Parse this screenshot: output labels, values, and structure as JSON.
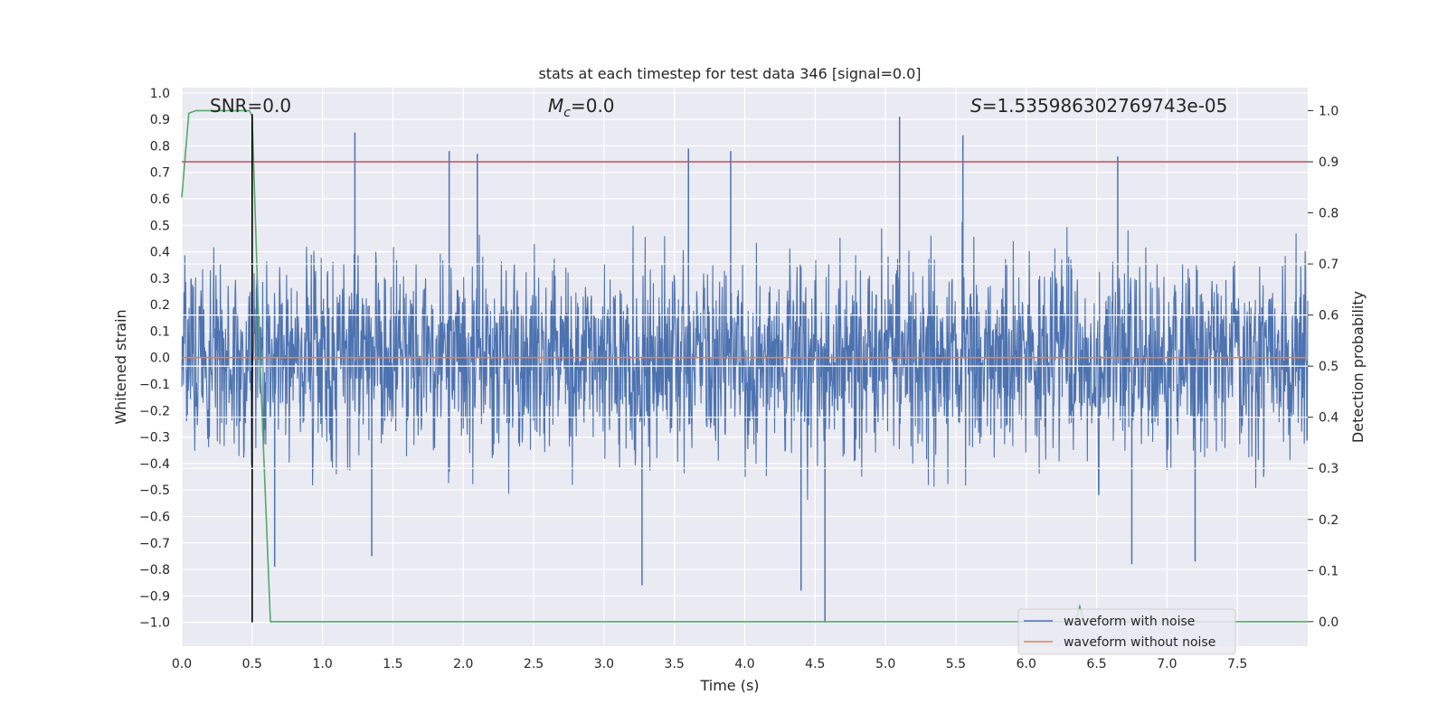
{
  "chart_data": {
    "type": "line",
    "title": "stats at each timestep for test data 346 [signal=0.0]",
    "xlabel": "Time (s)",
    "ylabel": "Whitened strain",
    "y2label": "Detection probability",
    "xlim": [
      0.0,
      8.0
    ],
    "ylim": [
      -1.09,
      1.02
    ],
    "y2lim": [
      -0.048,
      1.045
    ],
    "xticks": [
      "0.0",
      "0.5",
      "1.0",
      "1.5",
      "2.0",
      "2.5",
      "3.0",
      "3.5",
      "4.0",
      "4.5",
      "5.0",
      "5.5",
      "6.0",
      "6.5",
      "7.0",
      "7.5"
    ],
    "yticks": [
      "1.0",
      "0.9",
      "0.8",
      "0.7",
      "0.6",
      "0.5",
      "0.4",
      "0.3",
      "0.2",
      "0.1",
      "0.0",
      "−0.1",
      "−0.2",
      "−0.3",
      "−0.4",
      "−0.5",
      "−0.6",
      "−0.7",
      "−0.8",
      "−0.9",
      "−1.0"
    ],
    "y2ticks": [
      "1.0",
      "0.9",
      "0.8",
      "0.7",
      "0.6",
      "0.5",
      "0.4",
      "0.3",
      "0.2",
      "0.1",
      "0.0"
    ],
    "annotations": {
      "snr": "SNR=0.0",
      "mc_symbol": "M",
      "mc_sub": "c",
      "mc_value": "=0.0",
      "s_symbol": "S",
      "s_value": "=1.535986302769743e-05"
    },
    "series": [
      {
        "name": "waveform with noise",
        "color": "#4c72b0",
        "axis": "left",
        "description": "dense whitened strain noise",
        "envelope": {
          "typical": 0.3,
          "peaks": [
            [
              1.23,
              0.85
            ],
            [
              1.9,
              0.78
            ],
            [
              2.1,
              0.77
            ],
            [
              3.6,
              0.79
            ],
            [
              3.9,
              0.78
            ],
            [
              5.1,
              0.91
            ],
            [
              5.55,
              0.84
            ],
            [
              6.65,
              0.76
            ],
            [
              4.57,
              -1.0
            ],
            [
              4.4,
              -0.88
            ],
            [
              3.27,
              -0.86
            ],
            [
              1.35,
              -0.75
            ],
            [
              0.66,
              -0.79
            ],
            [
              6.75,
              -0.78
            ],
            [
              7.2,
              -0.77
            ]
          ]
        }
      },
      {
        "name": "waveform without noise",
        "color": "#dd8452",
        "axis": "left",
        "x": [
          0.0,
          8.0
        ],
        "y": [
          0.0,
          0.0
        ]
      },
      {
        "name": "detection probability",
        "color": "#55a868",
        "axis": "right",
        "x": [
          0.0,
          0.05,
          0.1,
          0.2,
          0.3,
          0.4,
          0.48,
          0.5,
          0.55,
          0.63,
          1.0,
          2.0,
          4.0,
          6.0,
          6.35,
          6.38,
          6.41,
          7.0,
          8.0
        ],
        "y": [
          0.83,
          0.995,
          1.0,
          1.0,
          1.0,
          1.0,
          1.0,
          0.99,
          0.55,
          0.0,
          0.0,
          0.0,
          0.0,
          0.0,
          0.0,
          0.03,
          0.0,
          0.0,
          0.0
        ]
      },
      {
        "name": "threshold",
        "color": "#c44e52",
        "axis": "right",
        "x": [
          0.0,
          8.0
        ],
        "y": [
          0.9,
          0.9
        ]
      }
    ],
    "vline": {
      "x": 0.5,
      "y_from": -1.0,
      "y_to": 0.92,
      "color": "#000000"
    },
    "legend": {
      "position": "lower-right",
      "entries": [
        {
          "label": "waveform with noise",
          "color": "#4c72b0"
        },
        {
          "label": "waveform without noise",
          "color": "#dd8452"
        }
      ]
    },
    "colors": {
      "background": "#eaeaf2",
      "grid": "#ffffff",
      "text": "#262626"
    }
  }
}
